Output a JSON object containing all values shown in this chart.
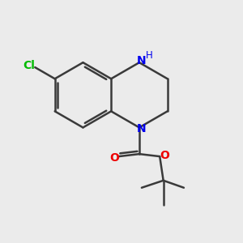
{
  "bg_color": "#ebebeb",
  "bond_color": "#3a3a3a",
  "N_color": "#0000ee",
  "O_color": "#ee0000",
  "Cl_color": "#00bb00",
  "lw": 1.8,
  "fig_size": [
    3.0,
    3.0
  ],
  "dpi": 100,
  "xlim": [
    0,
    10
  ],
  "ylim": [
    0,
    10
  ]
}
